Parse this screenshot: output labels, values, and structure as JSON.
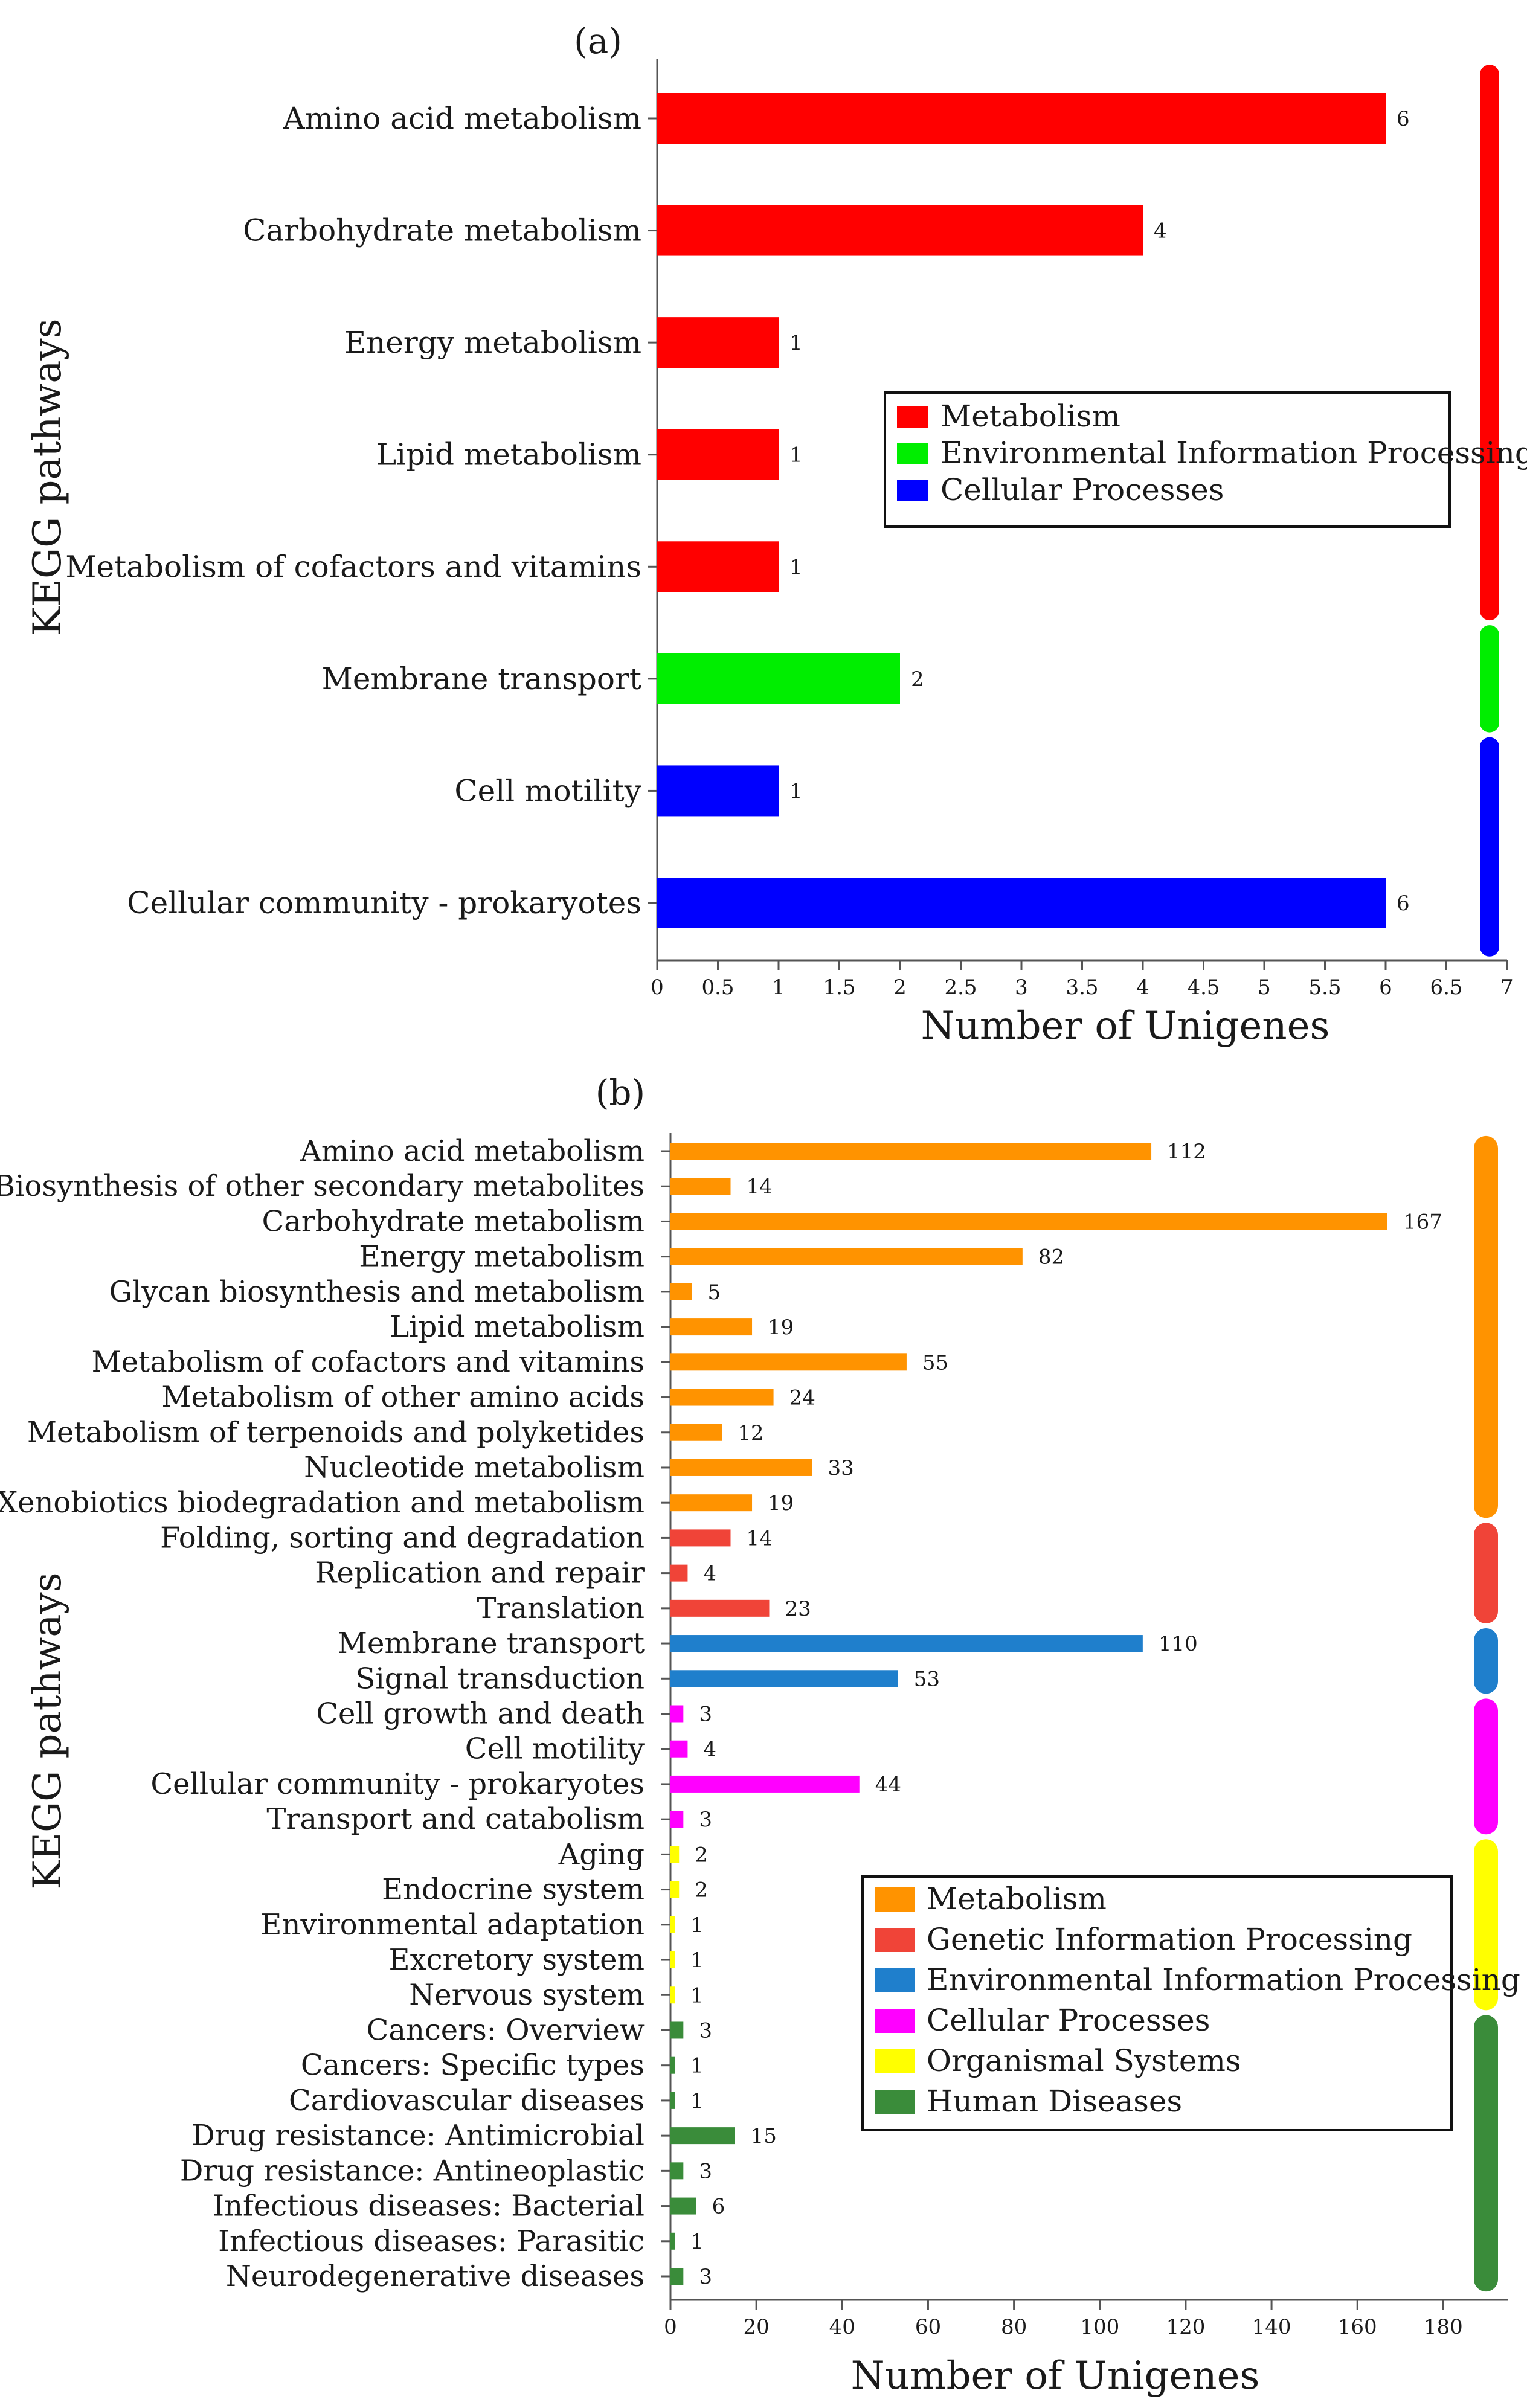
{
  "chart_data": [
    {
      "panel": "(a)",
      "type": "bar",
      "orientation": "horizontal",
      "xlabel": "Number of Unigenes",
      "ylabel": "KEGG pathways",
      "xlim": [
        0,
        7
      ],
      "ticks": [
        "0",
        "0.5",
        "1",
        "1.5",
        "2",
        "2.5",
        "3",
        "3.5",
        "4",
        "4.5",
        "5",
        "5.5",
        "6",
        "6.5",
        "7"
      ],
      "categories": [
        "Amino acid metabolism",
        "Carbohydrate metabolism",
        "Energy metabolism",
        "Lipid metabolism",
        "Metabolism of cofactors and vitamins",
        "Membrane transport",
        "Cell motility",
        "Cellular community - prokaryotes"
      ],
      "values": [
        6,
        4,
        1,
        1,
        1,
        2,
        1,
        6
      ],
      "value_labels": [
        "6",
        "4",
        "1",
        "1",
        "1",
        "2",
        "1",
        "6"
      ],
      "groups": [
        "Metabolism",
        "Metabolism",
        "Metabolism",
        "Metabolism",
        "Metabolism",
        "Environmental Information Processing",
        "Cellular Processes",
        "Cellular Processes"
      ],
      "legend": [
        {
          "label": "Metabolism",
          "color": "#ff0000"
        },
        {
          "label": "Environmental Information Processing",
          "color": "#00ee00"
        },
        {
          "label": "Cellular Processes",
          "color": "#0000ff"
        }
      ]
    },
    {
      "panel": "(b)",
      "type": "bar",
      "orientation": "horizontal",
      "xlabel": "Number of Unigenes",
      "ylabel": "KEGG pathways",
      "xlim": [
        0,
        195
      ],
      "ticks": [
        "0",
        "20",
        "40",
        "60",
        "80",
        "100",
        "120",
        "140",
        "160",
        "180"
      ],
      "categories": [
        "Amino acid metabolism",
        "Biosynthesis of other secondary metabolites",
        "Carbohydrate metabolism",
        "Energy metabolism",
        "Glycan biosynthesis and metabolism",
        "Lipid metabolism",
        "Metabolism of cofactors and vitamins",
        "Metabolism of other amino acids",
        "Metabolism of terpenoids and polyketides",
        "Nucleotide metabolism",
        "Xenobiotics biodegradation and metabolism",
        "Folding, sorting and degradation",
        "Replication and repair",
        "Translation",
        "Membrane transport",
        "Signal transduction",
        "Cell growth and death",
        "Cell motility",
        "Cellular community - prokaryotes",
        "Transport and catabolism",
        "Aging",
        "Endocrine system",
        "Environmental adaptation",
        "Excretory system",
        "Nervous system",
        "Cancers: Overview",
        "Cancers: Specific types",
        "Cardiovascular diseases",
        "Drug resistance: Antimicrobial",
        "Drug resistance: Antineoplastic",
        "Infectious diseases: Bacterial",
        "Infectious diseases: Parasitic",
        "Neurodegenerative diseases"
      ],
      "values": [
        112,
        14,
        167,
        82,
        5,
        19,
        55,
        24,
        12,
        33,
        19,
        14,
        4,
        23,
        110,
        53,
        3,
        4,
        44,
        3,
        2,
        2,
        1,
        1,
        1,
        3,
        1,
        1,
        15,
        3,
        6,
        1,
        3
      ],
      "value_labels": [
        "112",
        "14",
        "167",
        "82",
        "5",
        "19",
        "55",
        "24",
        "12",
        "33",
        "19",
        "14",
        "4",
        "23",
        "110",
        "53",
        "3",
        "4",
        "44",
        "3",
        "2",
        "2",
        "1",
        "1",
        "1",
        "3",
        "1",
        "1",
        "15",
        "3",
        "6",
        "1",
        "3"
      ],
      "groups": [
        "Metabolism",
        "Metabolism",
        "Metabolism",
        "Metabolism",
        "Metabolism",
        "Metabolism",
        "Metabolism",
        "Metabolism",
        "Metabolism",
        "Metabolism",
        "Metabolism",
        "Genetic Information Processing",
        "Genetic Information Processing",
        "Genetic Information Processing",
        "Environmental Information Processing",
        "Environmental Information Processing",
        "Cellular Processes",
        "Cellular Processes",
        "Cellular Processes",
        "Cellular Processes",
        "Organismal Systems",
        "Organismal Systems",
        "Organismal Systems",
        "Organismal Systems",
        "Organismal Systems",
        "Human Diseases",
        "Human Diseases",
        "Human Diseases",
        "Human Diseases",
        "Human Diseases",
        "Human Diseases",
        "Human Diseases",
        "Human Diseases"
      ],
      "legend": [
        {
          "label": "Metabolism",
          "color": "#ff9300"
        },
        {
          "label": "Genetic Information Processing",
          "color": "#f04438"
        },
        {
          "label": "Environmental Information Processing",
          "color": "#1f7fcc"
        },
        {
          "label": "Cellular Processes",
          "color": "#ff00ff"
        },
        {
          "label": "Organismal Systems",
          "color": "#ffff00"
        },
        {
          "label": "Human Diseases",
          "color": "#3a8c3a"
        }
      ]
    }
  ]
}
